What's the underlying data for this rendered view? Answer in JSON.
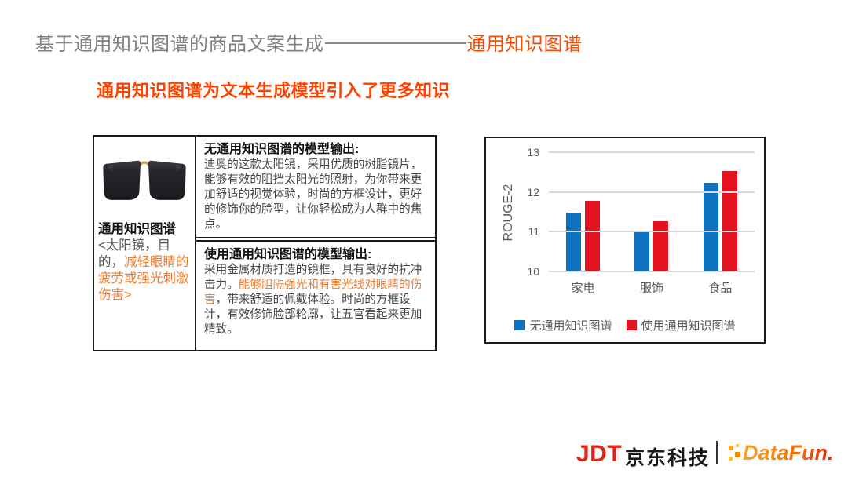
{
  "title": {
    "text_gray": "基于通用知识图谱的商品文案生成",
    "separator": "————",
    "text_orange": "通用知识图谱"
  },
  "subtitle": "通用知识图谱为文本生成模型引入了更多知识",
  "example_box": {
    "caption_title": "通用知识图谱",
    "caption_prefix": "<太阳镜，目的，",
    "caption_highlight": "减轻眼睛的疲劳或强光刺激伤害>",
    "without_kg": {
      "heading": "无通用知识图谱的模型输出:",
      "body": "迪奥的这款太阳镜，采用优质的树脂镜片，能够有效的阻挡太阳光的照射，为你带来更加舒适的视觉体验，时尚的方框设计，更好的修饰你的脸型，让你轻松成为人群中的焦点。"
    },
    "with_kg": {
      "heading": "使用通用知识图谱的模型输出:",
      "body_pre": "采用金属材质打造的镜框，具有良好的抗冲击力。",
      "body_highlight": "能够阻隔强光和有害光线对眼睛的伤害",
      "body_post": "，带来舒适的佩戴体验。时尚的方框设计，有效修饰脸部轮廓，让五官看起来更加精致。"
    }
  },
  "chart_data": {
    "type": "bar",
    "title": "",
    "categories": [
      "家电",
      "服饰",
      "食品"
    ],
    "series": [
      {
        "name": "无通用知识图谱",
        "color": "#0d72bf",
        "values": [
          11.48,
          11.03,
          12.23
        ]
      },
      {
        "name": "使用通用知识图谱",
        "color": "#e4121f",
        "values": [
          11.78,
          11.27,
          12.53
        ]
      }
    ],
    "xlabel": "",
    "ylabel": "ROUGE-2",
    "ylim": [
      10,
      13
    ],
    "yticks": [
      10,
      11,
      12,
      13
    ],
    "grid": true,
    "legend_position": "bottom"
  },
  "footer": {
    "jdt": "JDT",
    "jd_tech": "京东科技",
    "datafun": "DataFun."
  },
  "colors": {
    "title_gray": "#808080",
    "accent_orange": "#fb4b00",
    "body_highlight_orange": "#ed7d31",
    "bar_blue": "#0d72bf",
    "bar_red": "#e4121f",
    "jd_red": "#e1251b",
    "axis_text": "#595959"
  }
}
